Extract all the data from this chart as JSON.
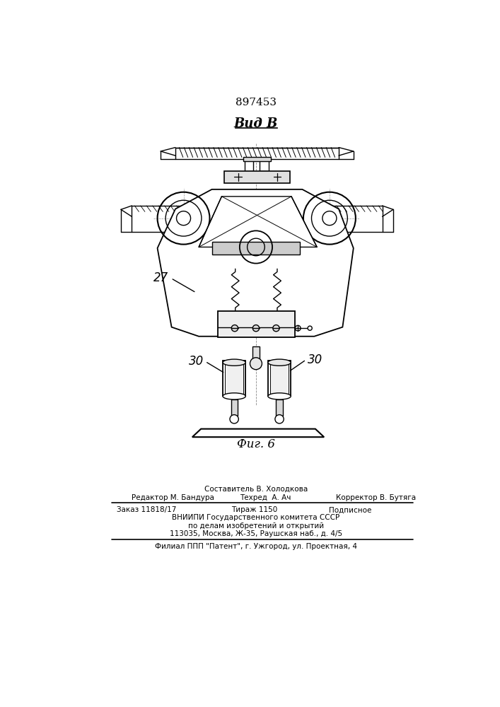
{
  "patent_number": "897453",
  "view_label": "Вид В",
  "fig_label": "Фиг. 6",
  "label_27": "27",
  "label_30_left": "30",
  "label_30_right": "30",
  "bg_color": "#ffffff",
  "line_color": "#000000",
  "line_width": 1.0,
  "footer_line1a": "Составитель В. Холодкова",
  "footer_line1b": "Редактор М. Бандура",
  "footer_line1c": "Техред  А. Ач",
  "footer_line1d": "Корректор В. Бутяга",
  "footer_line2a": "Заказ 11818/17",
  "footer_line2b": "Тираж 1150",
  "footer_line2c": "Подписное",
  "footer_line3": "ВНИИПИ Государственного комитета СССР",
  "footer_line4": "по делам изобретений и открытий",
  "footer_line5": "113035, Москва, Ж-35, Раушская наб., д. 4/5",
  "footer_line6": "Филиал ППП \"Патент\", г. Ужгород, ул. Проектная, 4"
}
